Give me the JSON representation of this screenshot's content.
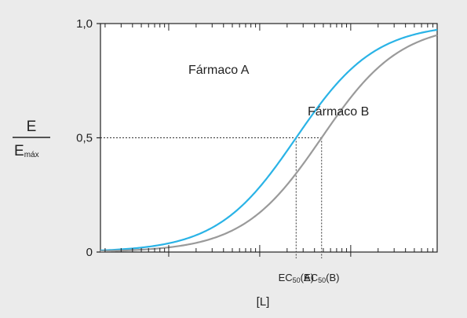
{
  "chart_data": {
    "type": "line",
    "x_scale": "log",
    "grid": false,
    "xlabel": "[L]",
    "ylabel": {
      "numerator": "E",
      "denominator_main": "E",
      "denominator_sub": "máx"
    },
    "ylim": [
      0,
      1
    ],
    "y_ticks": [
      {
        "value": 0,
        "label": "0"
      },
      {
        "value": 0.5,
        "label": "0,5"
      },
      {
        "value": 1,
        "label": "1,0"
      }
    ],
    "x_decade_range": [
      -1.75,
      1.95
    ],
    "series": [
      {
        "name": "Fármaco A",
        "ec50_log": 0.4,
        "hill": 1,
        "color": "#2ab3e6"
      },
      {
        "name": "Fármaco B",
        "ec50_log": 0.68,
        "hill": 1,
        "color": "#9a9a9a"
      }
    ],
    "reference_lines": [
      {
        "label_main": "EC",
        "label_sub": "50",
        "label_tail": "(A)",
        "series": "Fármaco A"
      },
      {
        "label_main": "EC",
        "label_sub": "50",
        "label_tail": "(B)",
        "series": "Fármaco B"
      }
    ]
  }
}
